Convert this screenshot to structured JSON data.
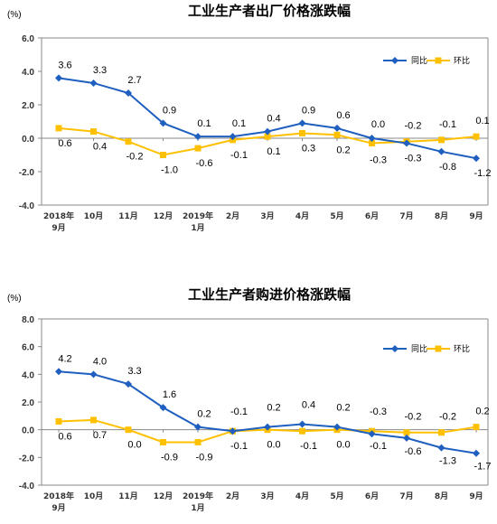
{
  "colors": {
    "yoy": "#1f5fbf",
    "mom": "#ffc000",
    "axis": "#888888"
  },
  "chart_data": [
    {
      "type": "line",
      "title": "工业生产者出厂价格涨跌幅",
      "unit": "(%)",
      "categories": [
        "2018年9月",
        "10月",
        "11月",
        "12月",
        "2019年1月",
        "2月",
        "3月",
        "4月",
        "5月",
        "6月",
        "7月",
        "8月",
        "9月"
      ],
      "category_lines": [
        [
          "2018年",
          "9月"
        ],
        [
          "10月"
        ],
        [
          "11月"
        ],
        [
          "12月"
        ],
        [
          "2019年",
          "1月"
        ],
        [
          "2月"
        ],
        [
          "3月"
        ],
        [
          "4月"
        ],
        [
          "5月"
        ],
        [
          "6月"
        ],
        [
          "7月"
        ],
        [
          "8月"
        ],
        [
          "9月"
        ]
      ],
      "ylim": [
        -4.0,
        6.0
      ],
      "yticks": [
        "6.0",
        "4.0",
        "2.0",
        "0.0",
        "-2.0",
        "-4.0"
      ],
      "legend_position": "top-right",
      "series": [
        {
          "name": "同比",
          "values": [
            3.6,
            3.3,
            2.7,
            0.9,
            0.1,
            0.1,
            0.4,
            0.9,
            0.6,
            0.0,
            -0.3,
            -0.8,
            -1.2
          ],
          "labels": [
            "3.6",
            "3.3",
            "2.7",
            "0.9",
            "0.1",
            "0.1",
            "0.4",
            "0.9",
            "0.6",
            "0.0",
            "-0.3",
            "-0.8",
            "-1.2"
          ]
        },
        {
          "name": "环比",
          "values": [
            0.6,
            0.4,
            -0.2,
            -1.0,
            -0.6,
            -0.1,
            0.1,
            0.3,
            0.2,
            -0.3,
            -0.2,
            -0.1,
            0.1
          ],
          "labels": [
            "0.6",
            "0.4",
            "-0.2",
            "-1.0",
            "-0.6",
            "-0.1",
            "0.1",
            "0.3",
            "0.2",
            "-0.3",
            "-0.2",
            "-0.1",
            "0.1"
          ]
        }
      ]
    },
    {
      "type": "line",
      "title": "工业生产者购进价格涨跌幅",
      "unit": "(%)",
      "categories": [
        "2018年9月",
        "10月",
        "11月",
        "12月",
        "2019年1月",
        "2月",
        "3月",
        "4月",
        "5月",
        "6月",
        "7月",
        "8月",
        "9月"
      ],
      "category_lines": [
        [
          "2018年",
          "9月"
        ],
        [
          "10月"
        ],
        [
          "11月"
        ],
        [
          "12月"
        ],
        [
          "2019年",
          "1月"
        ],
        [
          "2月"
        ],
        [
          "3月"
        ],
        [
          "4月"
        ],
        [
          "5月"
        ],
        [
          "6月"
        ],
        [
          "7月"
        ],
        [
          "8月"
        ],
        [
          "9月"
        ]
      ],
      "ylim": [
        -4.0,
        8.0
      ],
      "yticks": [
        "8.0",
        "6.0",
        "4.0",
        "2.0",
        "0.0",
        "-2.0",
        "-4.0"
      ],
      "legend_position": "top-right",
      "series": [
        {
          "name": "同比",
          "values": [
            4.2,
            4.0,
            3.3,
            1.6,
            0.2,
            -0.1,
            0.2,
            0.4,
            0.2,
            -0.3,
            -0.6,
            -1.3,
            -1.7
          ],
          "labels": [
            "4.2",
            "4.0",
            "3.3",
            "1.6",
            "0.2",
            "-0.1",
            "0.2",
            "0.4",
            "0.2",
            "-0.3",
            "-0.6",
            "-1.3",
            "-1.7"
          ]
        },
        {
          "name": "环比",
          "values": [
            0.6,
            0.7,
            0.0,
            -0.9,
            -0.9,
            -0.1,
            0.0,
            -0.1,
            0.0,
            -0.1,
            -0.2,
            -0.2,
            0.2
          ],
          "labels": [
            "0.6",
            "0.7",
            "0.0",
            "-0.9",
            "-0.9",
            "-0.1",
            "0.0",
            "-0.1",
            "0.0",
            "-0.1",
            "-0.2",
            "-0.2",
            "0.2"
          ]
        }
      ]
    }
  ]
}
